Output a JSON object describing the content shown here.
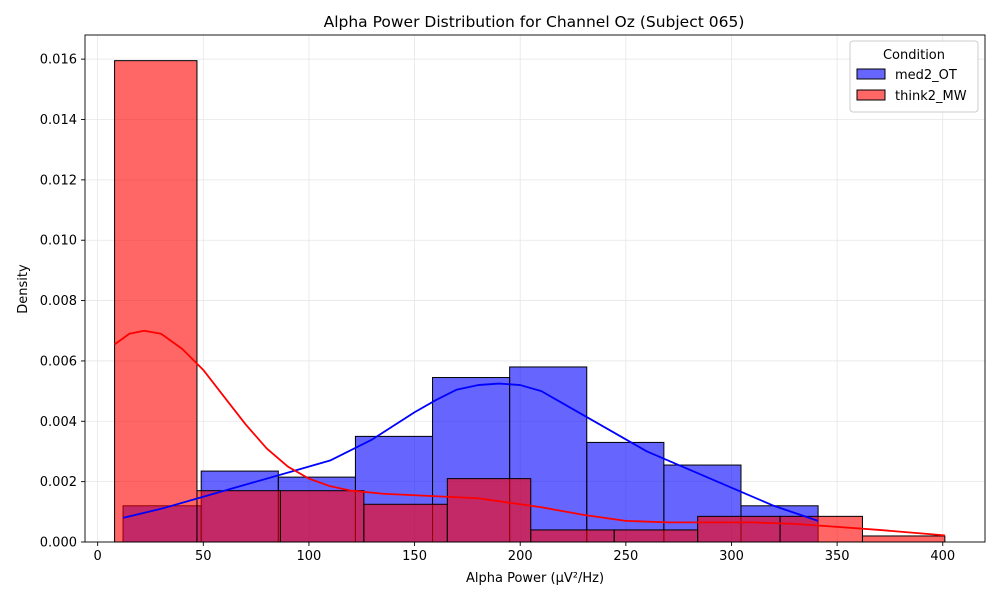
{
  "chart_data": {
    "type": "histogram",
    "title": "Alpha Power Distribution for Channel Oz (Subject 065)",
    "xlabel": "Alpha Power (µV²/Hz)",
    "ylabel": "Density",
    "xlim": [
      -6,
      420
    ],
    "ylim": [
      0,
      0.0168
    ],
    "x_ticks": [
      0,
      50,
      100,
      150,
      200,
      250,
      300,
      350,
      400
    ],
    "x_tick_labels": [
      "0",
      "50",
      "100",
      "150",
      "200",
      "250",
      "300",
      "350",
      "400"
    ],
    "y_ticks": [
      0,
      0.002,
      0.004,
      0.006,
      0.008,
      0.01,
      0.012,
      0.014,
      0.016
    ],
    "y_tick_labels": [
      "0.000",
      "0.002",
      "0.004",
      "0.006",
      "0.008",
      "0.010",
      "0.012",
      "0.014",
      "0.016"
    ],
    "grid": true,
    "legend": {
      "title": "Condition",
      "position": "top-right"
    },
    "series": [
      {
        "name": "med2_OT",
        "fill_color": "#6464ff",
        "line_color": "#0000ff",
        "bins": [
          {
            "x0": 12,
            "x1": 49,
            "density": 0.0012
          },
          {
            "x0": 49,
            "x1": 85.5,
            "density": 0.00235
          },
          {
            "x0": 85.5,
            "x1": 122,
            "density": 0.00215
          },
          {
            "x0": 122,
            "x1": 158.5,
            "density": 0.0035
          },
          {
            "x0": 158.5,
            "x1": 195,
            "density": 0.00545
          },
          {
            "x0": 195,
            "x1": 231.5,
            "density": 0.0058
          },
          {
            "x0": 231.5,
            "x1": 268,
            "density": 0.0033
          },
          {
            "x0": 268,
            "x1": 304.5,
            "density": 0.00255
          },
          {
            "x0": 304.5,
            "x1": 341,
            "density": 0.0012
          }
        ],
        "kde": {
          "x": [
            12,
            30,
            50,
            70,
            90,
            110,
            130,
            150,
            160,
            170,
            180,
            190,
            200,
            210,
            220,
            240,
            260,
            280,
            300,
            320,
            341
          ],
          "y": [
            0.0008,
            0.0011,
            0.0015,
            0.0019,
            0.0023,
            0.0027,
            0.0034,
            0.0043,
            0.0047,
            0.00505,
            0.0052,
            0.00525,
            0.0052,
            0.005,
            0.0046,
            0.0038,
            0.003,
            0.0024,
            0.0018,
            0.0012,
            0.0007
          ]
        }
      },
      {
        "name": "think2_MW",
        "fill_color": "#ff6464",
        "line_color": "#ff0000",
        "bins": [
          {
            "x0": 8,
            "x1": 47,
            "density": 0.01595
          },
          {
            "x0": 47,
            "x1": 86.5,
            "density": 0.0017
          },
          {
            "x0": 86.5,
            "x1": 126,
            "density": 0.0017
          },
          {
            "x0": 126,
            "x1": 165.5,
            "density": 0.00125
          },
          {
            "x0": 165.5,
            "x1": 205,
            "density": 0.0021
          },
          {
            "x0": 205,
            "x1": 244.5,
            "density": 0.0004
          },
          {
            "x0": 244.5,
            "x1": 284,
            "density": 0.0004
          },
          {
            "x0": 284,
            "x1": 323,
            "density": 0.00085
          },
          {
            "x0": 323,
            "x1": 362,
            "density": 0.00085
          },
          {
            "x0": 362,
            "x1": 401,
            "density": 0.0002
          }
        ],
        "kde": {
          "x": [
            8,
            15,
            22,
            30,
            40,
            50,
            60,
            70,
            80,
            90,
            100,
            110,
            120,
            135,
            150,
            165,
            180,
            195,
            210,
            230,
            250,
            270,
            290,
            310,
            330,
            350,
            370,
            401
          ],
          "y": [
            0.00655,
            0.0069,
            0.007,
            0.0069,
            0.0064,
            0.0057,
            0.0048,
            0.0039,
            0.0031,
            0.0025,
            0.0021,
            0.00185,
            0.0017,
            0.0016,
            0.00155,
            0.0015,
            0.00145,
            0.0013,
            0.00115,
            0.0009,
            0.0007,
            0.00065,
            0.00065,
            0.00065,
            0.0006,
            0.0005,
            0.0004,
            0.00022
          ]
        }
      }
    ]
  }
}
